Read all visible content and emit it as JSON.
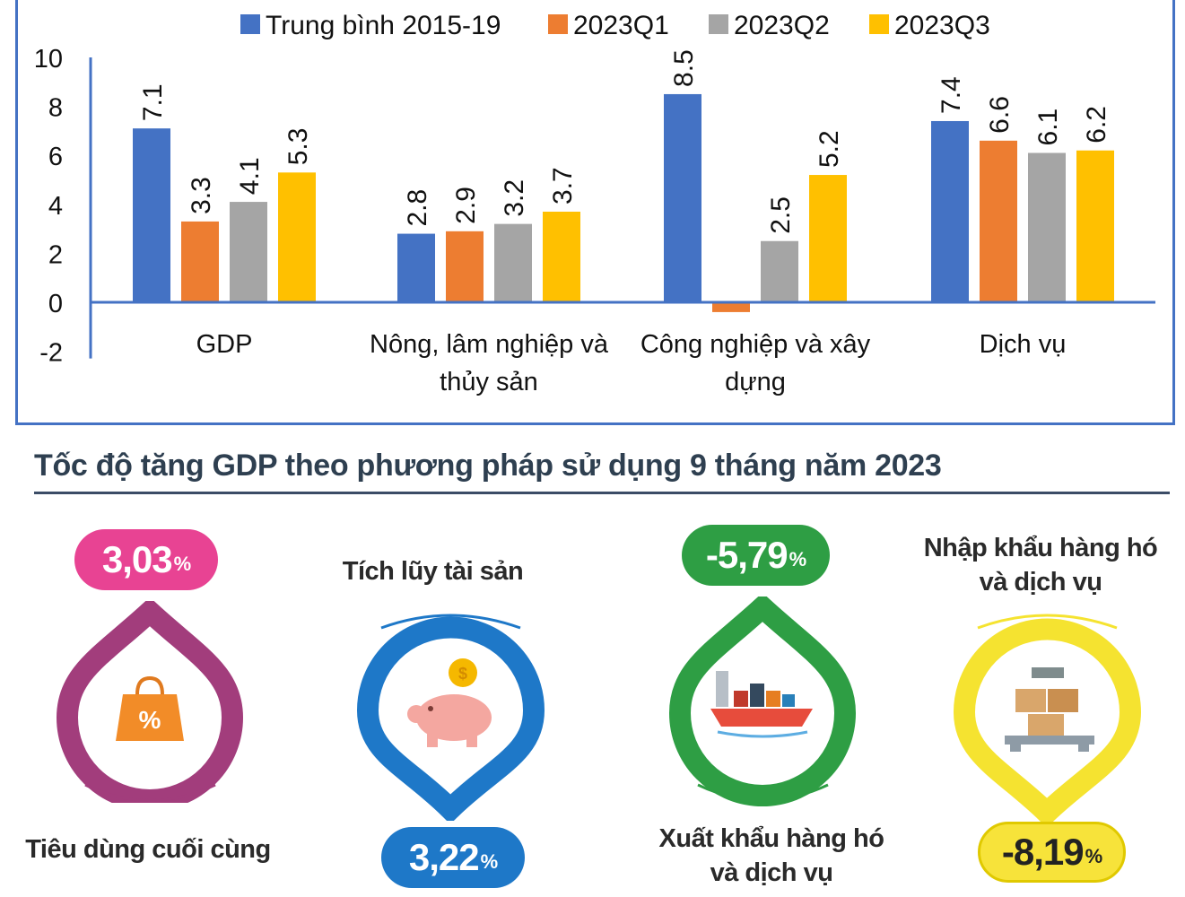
{
  "chart_data": {
    "type": "bar",
    "categories": [
      [
        "GDP"
      ],
      [
        "Nông, lâm nghiệp và",
        "thủy sản"
      ],
      [
        "Công nghiệp và xây",
        "dựng"
      ],
      [
        "Dịch vụ"
      ]
    ],
    "series": [
      {
        "name": "Trung bình 2015-19",
        "color": "#4472c4",
        "values": [
          7.1,
          2.8,
          8.5,
          7.4
        ]
      },
      {
        "name": "2023Q1",
        "color": "#ed7d31",
        "values": [
          3.3,
          2.9,
          -0.4,
          6.6
        ]
      },
      {
        "name": "2023Q2",
        "color": "#a5a5a5",
        "values": [
          4.1,
          3.2,
          2.5,
          6.1
        ]
      },
      {
        "name": "2023Q3",
        "color": "#ffc000",
        "values": [
          5.3,
          3.7,
          5.2,
          6.2
        ]
      }
    ],
    "value_labels_shown": [
      [
        true,
        true,
        true,
        true
      ],
      [
        true,
        true,
        false,
        true
      ],
      [
        true,
        true,
        true,
        true
      ],
      [
        true,
        true,
        true,
        true
      ]
    ],
    "yticks": [
      10,
      8,
      6,
      4,
      2,
      0,
      -2
    ],
    "ylim": [
      -2,
      10
    ],
    "legend_position": "top",
    "grid": false
  },
  "section_title": "Tốc độ tăng GDP theo phương pháp sử dụng 9 tháng năm 2023",
  "items": [
    {
      "name": "Tiêu dùng cuối cùng",
      "value": "3,03",
      "unit": "%",
      "color": "#e84393",
      "ring_color": "#a23d7c",
      "icon": "shopping-bag-icon"
    },
    {
      "name": "Tích lũy tài sản",
      "value": "3,22",
      "unit": "%",
      "color": "#1e78c8",
      "ring_color": "#1e78c8",
      "icon": "piggy-bank-icon"
    },
    {
      "name": "Xuất khẩu hàng hóa và dịch vụ",
      "value": "-5,79",
      "unit": "%",
      "color": "#2e9e44",
      "ring_color": "#2e9e44",
      "icon": "cargo-ship-icon"
    },
    {
      "name": "Nhập khẩu hàng hóa và dịch vụ",
      "value": "-8,19",
      "unit": "%",
      "color": "#f7e33a",
      "ring_color": "#f5e330",
      "icon": "cargo-scale-icon"
    }
  ]
}
